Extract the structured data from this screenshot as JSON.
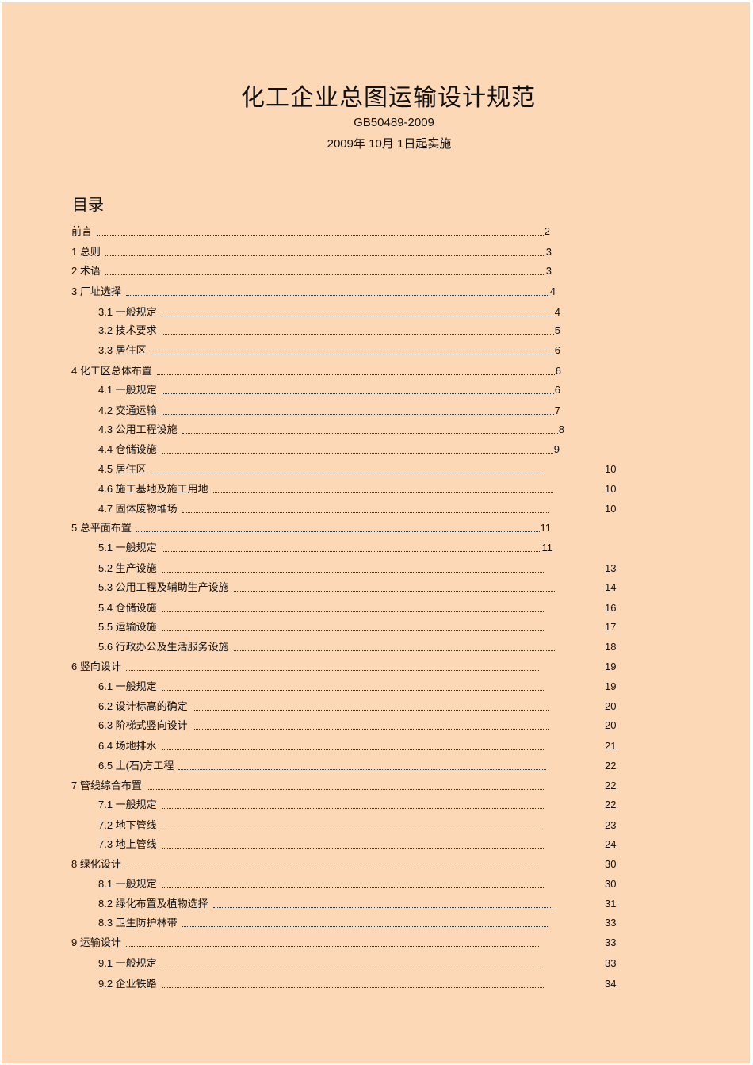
{
  "document": {
    "title": "化工企业总图运输设计规范",
    "code": "GB50489-2009",
    "effective_date": "2009年 10月 1日起实施",
    "toc_heading": "目录",
    "background_color": "#fdd8b6",
    "toc": [
      {
        "label": "前言",
        "page": "2",
        "level": 0
      },
      {
        "label": "1 总则",
        "page": "3",
        "level": 0
      },
      {
        "label": "2 术语",
        "page": "3",
        "level": 0
      },
      {
        "label": "3 厂址选择",
        "page": "4",
        "level": 0
      },
      {
        "label": "3.1 一般规定",
        "page": "4",
        "level": 1
      },
      {
        "label": "3.2 技术要求",
        "page": "5",
        "level": 1
      },
      {
        "label": "3.3 居住区",
        "page": "6",
        "level": 1
      },
      {
        "label": "4 化工区总体布置",
        "page": "6",
        "level": 0
      },
      {
        "label": "4.1 一般规定",
        "page": "6",
        "level": 1
      },
      {
        "label": "4.2 交通运输",
        "page": "7",
        "level": 1
      },
      {
        "label": "4.3 公用工程设施",
        "page": "8",
        "level": 1
      },
      {
        "label": "4.4 仓储设施",
        "page": "9",
        "level": 1
      },
      {
        "label": "4.5 居住区",
        "page": "10",
        "level": 1
      },
      {
        "label": "4.6 施工基地及施工用地",
        "page": "10",
        "level": 1
      },
      {
        "label": "4.7 固体废物堆场",
        "page": "10",
        "level": 1
      },
      {
        "label": "5 总平面布置",
        "page": "11",
        "level": 0
      },
      {
        "label": "5.1 一般规定",
        "page": "11",
        "level": 1
      },
      {
        "label": "5.2 生产设施",
        "page": "13",
        "level": 1
      },
      {
        "label": "5.3 公用工程及辅助生产设施",
        "page": "14",
        "level": 1
      },
      {
        "label": "5.4 仓储设施",
        "page": "16",
        "level": 1
      },
      {
        "label": "5.5 运输设施",
        "page": "17",
        "level": 1
      },
      {
        "label": "5.6 行政办公及生活服务设施",
        "page": "18",
        "level": 1
      },
      {
        "label": "6 竖向设计",
        "page": "19",
        "level": 0
      },
      {
        "label": "6.1 一般规定",
        "page": "19",
        "level": 1
      },
      {
        "label": "6.2 设计标高的确定",
        "page": "20",
        "level": 1
      },
      {
        "label": "6.3 阶梯式竖向设计",
        "page": "20",
        "level": 1
      },
      {
        "label": "6.4 场地排水",
        "page": "21",
        "level": 1
      },
      {
        "label": "6.5 土(石)方工程",
        "page": "22",
        "level": 1
      },
      {
        "label": "7 管线综合布置",
        "page": "22",
        "level": 0
      },
      {
        "label": "7.1 一般规定",
        "page": "22",
        "level": 1
      },
      {
        "label": "7.2 地下管线",
        "page": "23",
        "level": 1
      },
      {
        "label": "7.3 地上管线",
        "page": "24",
        "level": 1
      },
      {
        "label": "8 绿化设计",
        "page": "30",
        "level": 0
      },
      {
        "label": "8.1 一般规定",
        "page": "30",
        "level": 1
      },
      {
        "label": "8.2 绿化布置及植物选择",
        "page": "31",
        "level": 1
      },
      {
        "label": "8.3 卫生防护林带",
        "page": "33",
        "level": 1
      },
      {
        "label": "9 运输设计",
        "page": "33",
        "level": 0
      },
      {
        "label": "9.1 一般规定",
        "page": "33",
        "level": 1
      },
      {
        "label": "9.2 企业铁路",
        "page": "34",
        "level": 1
      }
    ]
  }
}
